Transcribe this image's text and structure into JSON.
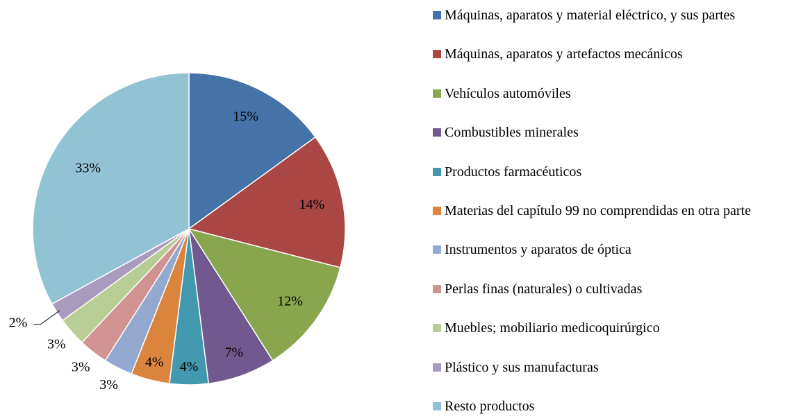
{
  "chart_data": {
    "type": "pie",
    "categories": [
      "Máquinas, aparatos y material eléctrico, y sus partes",
      "Máquinas, aparatos y artefactos mecánicos",
      "Vehículos automóviles",
      "Combustibles minerales",
      "Productos farmacéuticos",
      "Materias del capítulo 99 no comprendidas en otra parte",
      "Instrumentos y aparatos de óptica",
      "Perlas finas (naturales) o cultivadas",
      "Muebles; mobiliario medicoquirúrgico",
      "Plástico y sus manufacturas",
      "Resto productos"
    ],
    "values": [
      15,
      14,
      12,
      7,
      4,
      4,
      3,
      3,
      3,
      2,
      33
    ],
    "value_labels": [
      "15%",
      "14%",
      "12%",
      "7%",
      "4%",
      "4%",
      "3%",
      "3%",
      "3%",
      "2%",
      "33%"
    ],
    "colors": [
      "#4572a7",
      "#aa4643",
      "#89a54e",
      "#71588f",
      "#4198af",
      "#db843d",
      "#93a9cf",
      "#d19392",
      "#b9cd96",
      "#a99bbd",
      "#92c3d4"
    ],
    "legend": "right"
  }
}
